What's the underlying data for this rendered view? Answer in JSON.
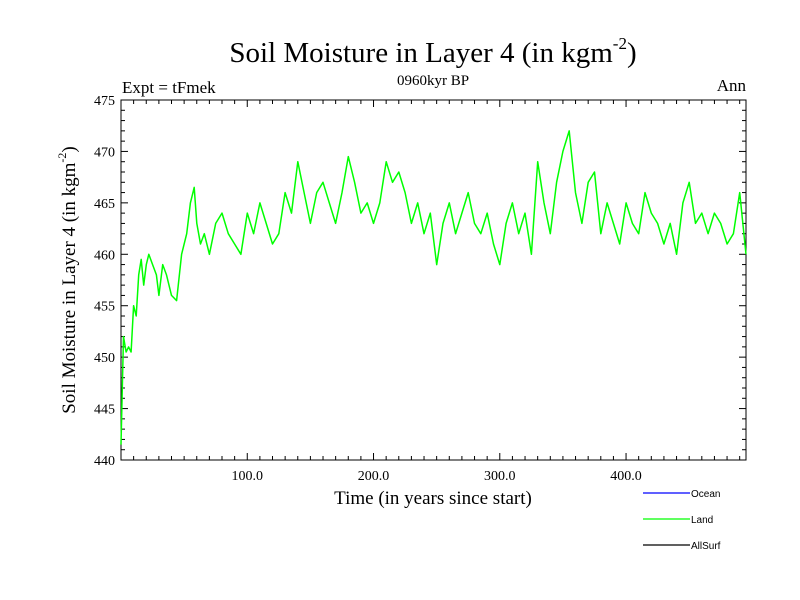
{
  "chart_data": {
    "type": "line",
    "title": "Soil Moisture in Layer 4 (in kgm",
    "title_sup": "-2",
    "title_close": ")",
    "subtitle": "0960kyr BP",
    "left_label": "Expt = tFmek",
    "right_label": "Ann",
    "xlabel": "Time (in years since start)",
    "ylabel": "Soil Moisture in Layer 4 (in kgm",
    "ylabel_sup": "-2",
    "ylabel_close": ")",
    "xlim": [
      0,
      495
    ],
    "ylim": [
      440,
      475
    ],
    "x_ticks": [
      100,
      200,
      300,
      400
    ],
    "x_tick_labels": [
      "100.0",
      "200.0",
      "300.0",
      "400.0"
    ],
    "y_ticks": [
      440,
      445,
      450,
      455,
      460,
      465,
      470,
      475
    ],
    "y_tick_labels": [
      "440",
      "445",
      "450",
      "455",
      "460",
      "465",
      "470",
      "475"
    ],
    "legend": [
      {
        "name": "Ocean",
        "color": "#0000ff"
      },
      {
        "name": "Land",
        "color": "#00ff00"
      },
      {
        "name": "AllSurf",
        "color": "#000000"
      }
    ],
    "series": [
      {
        "name": "Land",
        "color": "#00ff00",
        "x": [
          0,
          2,
          4,
          6,
          8,
          10,
          12,
          14,
          16,
          18,
          20,
          22,
          25,
          28,
          30,
          33,
          36,
          40,
          44,
          48,
          52,
          55,
          58,
          60,
          63,
          66,
          70,
          75,
          80,
          85,
          90,
          95,
          100,
          105,
          110,
          115,
          120,
          125,
          130,
          135,
          140,
          145,
          150,
          155,
          160,
          165,
          170,
          175,
          180,
          185,
          190,
          195,
          200,
          205,
          210,
          215,
          220,
          225,
          230,
          235,
          240,
          245,
          250,
          255,
          260,
          265,
          270,
          275,
          280,
          285,
          290,
          295,
          300,
          305,
          310,
          315,
          320,
          325,
          330,
          335,
          340,
          345,
          350,
          355,
          360,
          365,
          370,
          375,
          380,
          385,
          390,
          395,
          400,
          405,
          410,
          415,
          420,
          425,
          430,
          435,
          440,
          445,
          450,
          455,
          460,
          465,
          470,
          475,
          480,
          485,
          490,
          495
        ],
        "y": [
          441.5,
          452,
          450.5,
          451,
          450.5,
          455,
          454,
          458,
          459.5,
          457,
          459,
          460,
          459,
          458,
          456,
          459,
          458,
          456,
          455.5,
          460,
          462,
          465,
          466.5,
          463,
          461,
          462,
          460,
          463,
          464,
          462,
          461,
          460,
          464,
          462,
          465,
          463,
          461,
          462,
          466,
          464,
          469,
          466,
          463,
          466,
          467,
          465,
          463,
          466,
          469.5,
          467,
          464,
          465,
          463,
          465,
          469,
          467,
          468,
          466,
          463,
          465,
          462,
          464,
          459,
          463,
          465,
          462,
          464,
          466,
          463,
          462,
          464,
          461,
          459,
          463,
          465,
          462,
          464,
          460,
          469,
          465,
          462,
          467,
          470,
          472,
          466,
          463,
          467,
          468,
          462,
          465,
          463,
          461,
          465,
          463,
          462,
          466,
          464,
          463,
          461,
          463,
          460,
          465,
          467,
          463,
          464,
          462,
          464,
          463,
          461,
          462,
          466,
          460
        ]
      }
    ]
  }
}
